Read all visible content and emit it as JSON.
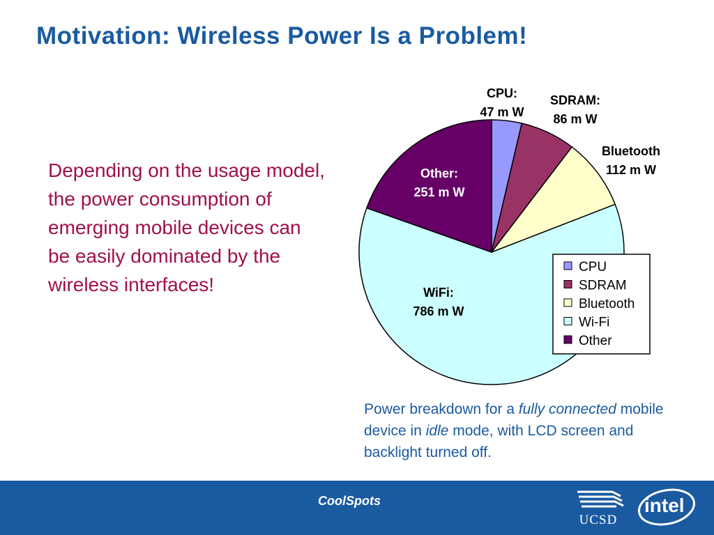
{
  "title": "Motivation: Wireless Power Is a Problem!",
  "body_text": "Depending on the usage model, the power consumption of emerging mobile devices can be easily dominated by the wireless interfaces!",
  "caption": {
    "part1": "Power breakdown for a ",
    "italic1": "fully connected",
    "part2": " mobile device in ",
    "italic2": "idle",
    "part3": " mode, with LCD screen and backlight turned off."
  },
  "chart_data": {
    "type": "pie",
    "unit": "mW",
    "slices": [
      {
        "name": "CPU",
        "label": "CPU:",
        "value_label": "47 m W",
        "value": 47,
        "color": "#9999ff"
      },
      {
        "name": "SDRAM",
        "label": "SDRAM:",
        "value_label": "86 m W",
        "value": 86,
        "color": "#993366"
      },
      {
        "name": "Bluetooth",
        "label": "Bluetooth",
        "value_label": "112 m W",
        "value": 112,
        "color": "#ffffcc"
      },
      {
        "name": "Wi-Fi",
        "label": "WiFi:",
        "value_label": "786 m W",
        "value": 786,
        "color": "#ccffff"
      },
      {
        "name": "Other",
        "label": "Other:",
        "value_label": "251 m W",
        "value": 251,
        "color": "#660066"
      }
    ],
    "legend": [
      "CPU",
      "SDRAM",
      "Bluetooth",
      "Wi-Fi",
      "Other"
    ],
    "legend_position": "bottom-right"
  },
  "footer": {
    "center_text": "CoolSpots",
    "logo_ucsd": "UCSD",
    "logo_intel": "intel"
  }
}
